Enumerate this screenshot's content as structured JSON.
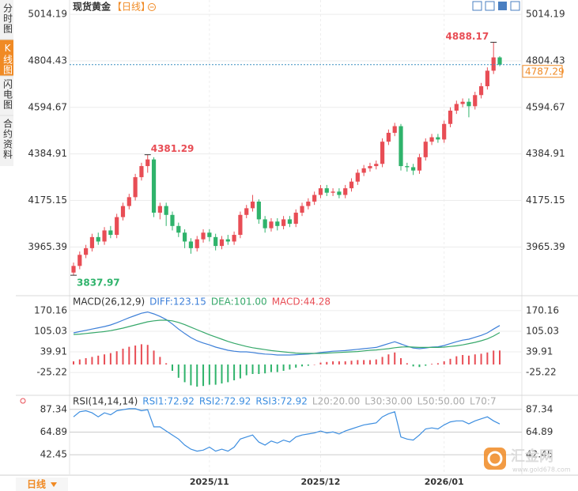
{
  "tabs": [
    "分时图",
    "K线图",
    "闪电图",
    "合约资料"
  ],
  "period_button": "日线",
  "watermark": {
    "name": "汇金网",
    "url": "www.gold678.com"
  },
  "chart_data": [
    {
      "type": "candlestick",
      "title": "现货黄金",
      "period": "【日线】",
      "categories": [
        null,
        null,
        null,
        null,
        null,
        null,
        null,
        null,
        null,
        null,
        null,
        null,
        null,
        null,
        null,
        null,
        null,
        null,
        null,
        null,
        null,
        null,
        "2025/11",
        null,
        null,
        null,
        null,
        null,
        null,
        null,
        null,
        null,
        null,
        null,
        null,
        null,
        null,
        null,
        null,
        null,
        "2025/12",
        null,
        null,
        null,
        null,
        null,
        null,
        null,
        null,
        null,
        null,
        null,
        null,
        null,
        null,
        null,
        null,
        null,
        null,
        null,
        "2026/01",
        null,
        null,
        null,
        null,
        null,
        null,
        null,
        null,
        null
      ],
      "open": [
        3850,
        3880,
        3930,
        3960,
        4010,
        3990,
        4040,
        4020,
        4100,
        4150,
        4190,
        4280,
        4330,
        4360,
        4120,
        4150,
        4110,
        4060,
        4030,
        3990,
        3960,
        4000,
        4030,
        4010,
        3970,
        4000,
        3990,
        4020,
        4110,
        4140,
        4170,
        4090,
        4050,
        4080,
        4060,
        4090,
        4070,
        4120,
        4150,
        4170,
        4200,
        4230,
        4210,
        4215,
        4200,
        4230,
        4260,
        4300,
        4320,
        4330,
        4340,
        4440,
        4480,
        4510,
        4330,
        4325,
        4310,
        4370,
        4440,
        4460,
        4450,
        4520,
        4580,
        4610,
        4620,
        4600,
        4650,
        4690,
        4760,
        4820
      ],
      "high": [
        3895,
        3945,
        3975,
        4025,
        4030,
        4055,
        4060,
        4115,
        4165,
        4205,
        4295,
        4345,
        4381.29,
        4370,
        4165,
        4165,
        4125,
        4075,
        4045,
        4005,
        4015,
        4045,
        4045,
        4025,
        4015,
        4020,
        4035,
        4125,
        4155,
        4200,
        4180,
        4105,
        4095,
        4095,
        4105,
        4105,
        4135,
        4165,
        4185,
        4215,
        4245,
        4245,
        4230,
        4230,
        4245,
        4275,
        4315,
        4335,
        4345,
        4355,
        4455,
        4495,
        4525,
        4520,
        4345,
        4340,
        4385,
        4455,
        4475,
        4475,
        4535,
        4595,
        4625,
        4635,
        4635,
        4665,
        4705,
        4775,
        4888.17,
        4825
      ],
      "low": [
        3837.97,
        3865,
        3915,
        3945,
        3975,
        3975,
        4005,
        4005,
        4085,
        4135,
        4175,
        4265,
        4300,
        4100,
        4090,
        4060,
        4040,
        4010,
        3960,
        3935,
        3945,
        3985,
        3990,
        3950,
        3955,
        3975,
        3975,
        4005,
        4095,
        4125,
        4070,
        4030,
        4035,
        4040,
        4045,
        4055,
        4055,
        4105,
        4135,
        4155,
        4185,
        4195,
        4195,
        4185,
        4185,
        4215,
        4245,
        4285,
        4305,
        4315,
        4325,
        4425,
        4465,
        4310,
        4305,
        4290,
        4295,
        4355,
        4425,
        4435,
        4435,
        4505,
        4565,
        4595,
        4550,
        4585,
        4635,
        4675,
        4745,
        4780
      ],
      "close": [
        3880,
        3930,
        3960,
        4010,
        3990,
        4040,
        4020,
        4100,
        4150,
        4190,
        4280,
        4330,
        4360,
        4120,
        4150,
        4110,
        4060,
        4030,
        3990,
        3960,
        4000,
        4030,
        4010,
        3970,
        4000,
        3990,
        4020,
        4110,
        4140,
        4170,
        4090,
        4050,
        4080,
        4060,
        4090,
        4070,
        4120,
        4150,
        4170,
        4200,
        4230,
        4210,
        4215,
        4200,
        4230,
        4260,
        4300,
        4320,
        4330,
        4340,
        4440,
        4480,
        4510,
        4330,
        4325,
        4310,
        4370,
        4440,
        4460,
        4450,
        4520,
        4580,
        4610,
        4620,
        4600,
        4650,
        4690,
        4760,
        4820,
        4787.29
      ],
      "up_color": "#e84d55",
      "down_color": "#2fb36b",
      "ylim": [
        3760,
        5043
      ],
      "yticks": [
        5014.19,
        4804.43,
        4594.67,
        4384.91,
        4175.15,
        3965.39
      ],
      "grid": true,
      "annotations": [
        4888.17,
        4381.29,
        3837.97
      ],
      "last_price": 4787.29,
      "last_price_color": "#f08a24"
    },
    {
      "type": "macd",
      "title": "MACD(26,12,9)",
      "series": [
        {
          "name": "DIFF:123.15",
          "color": "#3d7fd8",
          "values": [
            100,
            104,
            108,
            112,
            116,
            120,
            125,
            132,
            140,
            148,
            155,
            162,
            166,
            160,
            152,
            142,
            128,
            112,
            98,
            85,
            75,
            68,
            62,
            55,
            50,
            45,
            42,
            40,
            40,
            38,
            35,
            33,
            32,
            30,
            30,
            30,
            31,
            32,
            33,
            35,
            38,
            40,
            42,
            43,
            44,
            46,
            48,
            50,
            52,
            54,
            60,
            66,
            72,
            65,
            58,
            52,
            50,
            52,
            55,
            56,
            60,
            66,
            72,
            77,
            80,
            86,
            92,
            100,
            112,
            123.15
          ]
        },
        {
          "name": "DEA:101.00",
          "color": "#36a86a",
          "values": [
            95,
            96,
            98,
            100,
            102,
            104,
            107,
            111,
            115,
            120,
            125,
            130,
            135,
            138,
            140,
            140,
            138,
            133,
            126,
            118,
            110,
            102,
            94,
            87,
            80,
            73,
            67,
            62,
            57,
            53,
            50,
            47,
            44,
            42,
            40,
            38,
            36,
            35,
            35,
            35,
            35,
            36,
            37,
            38,
            39,
            40,
            41,
            43,
            45,
            46,
            48,
            50,
            53,
            55,
            56,
            55,
            54,
            54,
            54,
            54,
            55,
            57,
            59,
            62,
            66,
            70,
            75,
            81,
            90,
            101
          ]
        },
        {
          "name": "MACD:44.28",
          "color": "#e84d55",
          "down_color": "#2fb36b",
          "kind": "histogram",
          "values": [
            10,
            16,
            20,
            24,
            28,
            32,
            36,
            42,
            50,
            56,
            60,
            64,
            62,
            44,
            24,
            4,
            -20,
            -42,
            -56,
            -66,
            -70,
            -68,
            -64,
            -64,
            -60,
            -56,
            -50,
            -44,
            -34,
            -30,
            -30,
            -28,
            -24,
            -24,
            -20,
            -16,
            -10,
            -6,
            -4,
            0,
            6,
            8,
            10,
            10,
            10,
            12,
            14,
            14,
            14,
            16,
            24,
            32,
            38,
            20,
            4,
            -6,
            -8,
            -4,
            2,
            4,
            10,
            18,
            26,
            30,
            28,
            32,
            34,
            38,
            44,
            44.28
          ]
        }
      ],
      "ylim": [
        -90,
        195
      ],
      "yticks": [
        170.16,
        105.03,
        39.91,
        -25.22
      ],
      "grid": true
    },
    {
      "type": "rsi",
      "title": "RSI(14,14,14)",
      "series": [
        {
          "name": "RSI1:72.92",
          "color": "#3d8ee0",
          "values": [
            80,
            85,
            86,
            84,
            80,
            84,
            82,
            86,
            87,
            88,
            88,
            86,
            87,
            70,
            70,
            66,
            62,
            58,
            52,
            48,
            46,
            47,
            50,
            46,
            48,
            46,
            50,
            58,
            60,
            62,
            55,
            52,
            56,
            54,
            57,
            55,
            60,
            62,
            63,
            64,
            66,
            64,
            65,
            63,
            66,
            68,
            70,
            72,
            73,
            74,
            80,
            83,
            85,
            60,
            58,
            57,
            62,
            68,
            69,
            68,
            72,
            75,
            76,
            76,
            73,
            76,
            78,
            80,
            76,
            72.92
          ]
        }
      ],
      "legend": [
        {
          "name": "RSI2:72.92",
          "color": "#3d8ee0"
        },
        {
          "name": "RSI3:72.92",
          "color": "#3d8ee0"
        },
        {
          "name": "L20:20.00",
          "color": "#aaaaaa"
        },
        {
          "name": "L30:30.00",
          "color": "#aaaaaa"
        },
        {
          "name": "L50:50.00",
          "color": "#aaaaaa"
        },
        {
          "name": "L70:7",
          "color": "#aaaaaa"
        }
      ],
      "ylim": [
        23,
        95
      ],
      "yticks": [
        87.34,
        64.89,
        42.45
      ],
      "grid": true
    }
  ]
}
